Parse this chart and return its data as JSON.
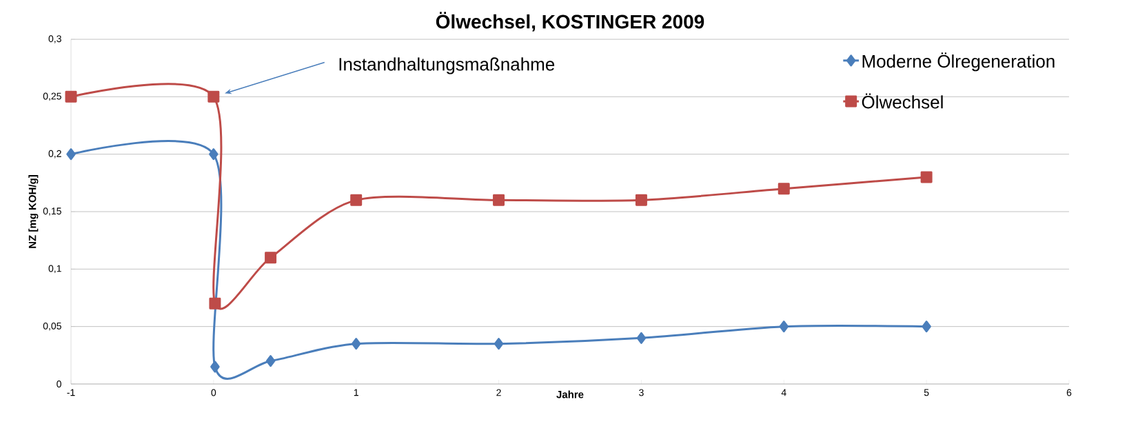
{
  "chart_data": {
    "type": "line",
    "title": "Ölwechsel, KOSTINGER 2009",
    "xlabel": "Jahre",
    "ylabel": "NZ [mg KOH/g]",
    "annotations": [
      "Instandhaltungsmaßnahme"
    ],
    "series": [
      {
        "name": "Moderne Ölregeneration",
        "color": "#4a7ebb",
        "marker": "diamond",
        "x": [
          -1,
          0,
          0.01,
          0.4,
          1,
          2,
          3,
          4,
          5
        ],
        "values": [
          0.2,
          0.2,
          0.015,
          0.02,
          0.035,
          0.035,
          0.04,
          0.05,
          0.05
        ]
      },
      {
        "name": "Ölwechsel",
        "color": "#be4b48",
        "marker": "square",
        "x": [
          -1,
          0,
          0.01,
          0.4,
          1,
          2,
          3,
          4,
          5
        ],
        "values": [
          0.25,
          0.25,
          0.07,
          0.11,
          0.16,
          0.16,
          0.16,
          0.17,
          0.18
        ]
      }
    ],
    "xlim": [
      -1,
      6
    ],
    "xticks": [
      -1,
      0,
      1,
      2,
      3,
      4,
      5,
      6
    ],
    "ylim": [
      0,
      0.3
    ],
    "yticks": [
      0,
      {
        "value": 0.05,
        "label": "0,05"
      },
      {
        "value": 0.1,
        "label": "0,1"
      },
      {
        "value": 0.15,
        "label": "0,15"
      },
      {
        "value": 0.2,
        "label": "0,2"
      },
      {
        "value": 0.25,
        "label": "0,25"
      },
      {
        "value": 0.3,
        "label": "0,3"
      }
    ],
    "grid": "y",
    "legend": "top right",
    "line_style": "solid"
  }
}
